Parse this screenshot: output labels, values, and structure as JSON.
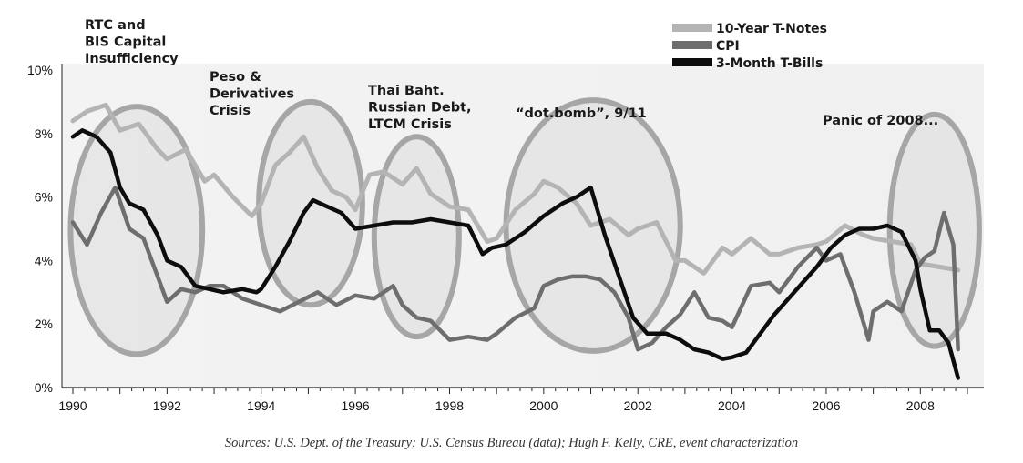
{
  "chart_data": {
    "type": "line",
    "xlim": [
      1990,
      2009
    ],
    "ylim": [
      0,
      10
    ],
    "x_ticks": [
      "1990",
      "1992",
      "1994",
      "1996",
      "1998",
      "2000",
      "2002",
      "2004",
      "2006",
      "2008"
    ],
    "y_ticks": [
      "0%",
      "2%",
      "4%",
      "6%",
      "8%",
      "10%"
    ],
    "legend_position": "top-right",
    "grid": false,
    "series": [
      {
        "name": "10-Year T-Notes",
        "color": "#b4b4b4",
        "x": [
          1990.0,
          1990.3,
          1990.7,
          1991.0,
          1991.4,
          1991.8,
          1992.0,
          1992.4,
          1992.8,
          1993.0,
          1993.4,
          1993.8,
          1994.0,
          1994.3,
          1994.6,
          1994.9,
          1995.2,
          1995.5,
          1995.8,
          1996.0,
          1996.3,
          1996.6,
          1997.0,
          1997.3,
          1997.6,
          1998.0,
          1998.4,
          1998.8,
          1999.0,
          1999.4,
          1999.8,
          2000.0,
          2000.3,
          2000.7,
          2001.0,
          2001.4,
          2001.8,
          2002.0,
          2002.4,
          2002.8,
          2003.0,
          2003.4,
          2003.8,
          2004.0,
          2004.4,
          2004.8,
          2005.0,
          2005.4,
          2005.8,
          2006.0,
          2006.4,
          2006.8,
          2007.0,
          2007.4,
          2007.8,
          2008.0,
          2008.4,
          2008.8
        ],
        "values": [
          8.4,
          8.7,
          8.9,
          8.1,
          8.3,
          7.5,
          7.2,
          7.5,
          6.5,
          6.7,
          6.0,
          5.4,
          5.8,
          7.0,
          7.4,
          7.9,
          6.9,
          6.2,
          6.0,
          5.6,
          6.7,
          6.8,
          6.4,
          6.9,
          6.1,
          5.7,
          5.6,
          4.6,
          4.7,
          5.6,
          6.1,
          6.5,
          6.3,
          5.8,
          5.1,
          5.3,
          4.8,
          5.0,
          5.2,
          4.0,
          4.0,
          3.6,
          4.4,
          4.2,
          4.7,
          4.2,
          4.2,
          4.4,
          4.5,
          4.6,
          5.1,
          4.8,
          4.7,
          4.6,
          4.5,
          3.9,
          3.8,
          3.7
        ]
      },
      {
        "name": "CPI",
        "color": "#6e6e6e",
        "x": [
          1990.0,
          1990.3,
          1990.6,
          1990.9,
          1991.2,
          1991.5,
          1991.8,
          1992.0,
          1992.3,
          1992.6,
          1992.9,
          1993.2,
          1993.6,
          1994.0,
          1994.4,
          1994.8,
          1995.2,
          1995.6,
          1996.0,
          1996.4,
          1996.8,
          1997.0,
          1997.3,
          1997.6,
          1998.0,
          1998.4,
          1998.8,
          1999.0,
          1999.4,
          1999.8,
          2000.0,
          2000.3,
          2000.6,
          2000.9,
          2001.2,
          2001.5,
          2001.8,
          2002.0,
          2002.3,
          2002.6,
          2002.9,
          2003.2,
          2003.5,
          2003.8,
          2004.0,
          2004.4,
          2004.8,
          2005.0,
          2005.4,
          2005.8,
          2006.0,
          2006.3,
          2006.6,
          2006.9,
          2007.0,
          2007.3,
          2007.6,
          2007.9,
          2008.1,
          2008.3,
          2008.5,
          2008.7,
          2008.8
        ],
        "values": [
          5.2,
          4.5,
          5.5,
          6.3,
          5.0,
          4.7,
          3.5,
          2.7,
          3.1,
          3.0,
          3.2,
          3.2,
          2.8,
          2.6,
          2.4,
          2.7,
          3.0,
          2.6,
          2.9,
          2.8,
          3.2,
          2.6,
          2.2,
          2.1,
          1.5,
          1.6,
          1.5,
          1.7,
          2.2,
          2.5,
          3.2,
          3.4,
          3.5,
          3.5,
          3.4,
          3.0,
          2.2,
          1.2,
          1.4,
          1.9,
          2.3,
          3.0,
          2.2,
          2.1,
          1.9,
          3.2,
          3.3,
          3.0,
          3.8,
          4.4,
          4.0,
          4.2,
          3.0,
          1.5,
          2.4,
          2.7,
          2.4,
          3.7,
          4.1,
          4.3,
          5.5,
          4.5,
          1.2
        ]
      },
      {
        "name": "3-Month T-Bills",
        "color": "#0d0d0d",
        "x": [
          1990.0,
          1990.2,
          1990.5,
          1990.8,
          1991.0,
          1991.2,
          1991.5,
          1991.8,
          1992.0,
          1992.3,
          1992.6,
          1992.9,
          1993.2,
          1993.6,
          1993.9,
          1994.0,
          1994.3,
          1994.6,
          1994.9,
          1995.1,
          1995.4,
          1995.7,
          1996.0,
          1996.4,
          1996.8,
          1997.2,
          1997.6,
          1998.0,
          1998.4,
          1998.7,
          1998.9,
          1999.2,
          1999.6,
          2000.0,
          2000.4,
          2000.7,
          2001.0,
          2001.3,
          2001.6,
          2001.9,
          2002.2,
          2002.6,
          2002.9,
          2003.2,
          2003.5,
          2003.8,
          2004.0,
          2004.3,
          2004.6,
          2004.9,
          2005.2,
          2005.5,
          2005.8,
          2006.1,
          2006.4,
          2006.7,
          2007.0,
          2007.3,
          2007.6,
          2007.9,
          2008.0,
          2008.2,
          2008.4,
          2008.6,
          2008.8
        ],
        "values": [
          7.9,
          8.1,
          7.9,
          7.4,
          6.3,
          5.8,
          5.6,
          4.8,
          4.0,
          3.8,
          3.2,
          3.1,
          3.0,
          3.1,
          3.0,
          3.1,
          3.8,
          4.6,
          5.5,
          5.9,
          5.7,
          5.5,
          5.0,
          5.1,
          5.2,
          5.2,
          5.3,
          5.2,
          5.1,
          4.2,
          4.4,
          4.5,
          4.9,
          5.4,
          5.8,
          6.0,
          6.3,
          4.8,
          3.5,
          2.2,
          1.7,
          1.7,
          1.5,
          1.2,
          1.1,
          0.9,
          0.95,
          1.1,
          1.7,
          2.3,
          2.8,
          3.3,
          3.8,
          4.4,
          4.8,
          5.0,
          5.0,
          5.1,
          4.9,
          4.0,
          3.1,
          1.8,
          1.8,
          1.4,
          0.3
        ]
      }
    ],
    "annotations": [
      {
        "id": "rtc",
        "lines": [
          "RTC and",
          "BIS Capital",
          "Insufficiency"
        ],
        "ellipse_center": [
          1991.35,
          4.95
        ],
        "ellipse_width_years": 2.8,
        "ellipse_height_pct": 7.8
      },
      {
        "id": "peso",
        "lines": [
          "Peso &",
          "Derivatives",
          "Crisis"
        ],
        "ellipse_center": [
          1995.05,
          5.8
        ],
        "ellipse_width_years": 2.2,
        "ellipse_height_pct": 6.4
      },
      {
        "id": "thai",
        "lines": [
          "Thai Baht.",
          "Russian Debt,",
          "LTCM Crisis"
        ],
        "ellipse_center": [
          1997.3,
          4.75
        ],
        "ellipse_width_years": 1.8,
        "ellipse_height_pct": 6.3
      },
      {
        "id": "dotbomb",
        "lines": [
          "“dot.bomb”, 9/11"
        ],
        "ellipse_center": [
          2001.05,
          5.1
        ],
        "ellipse_width_years": 3.7,
        "ellipse_height_pct": 7.9
      },
      {
        "id": "panic",
        "lines": [
          "Panic of 2008..."
        ],
        "ellipse_center": [
          2008.3,
          4.95
        ],
        "ellipse_width_years": 1.9,
        "ellipse_height_pct": 7.3
      }
    ]
  },
  "source_text": "Sources: U.S. Dept. of the Treasury; U.S. Census Bureau (data); Hugh F. Kelly, CRE, event characterization"
}
